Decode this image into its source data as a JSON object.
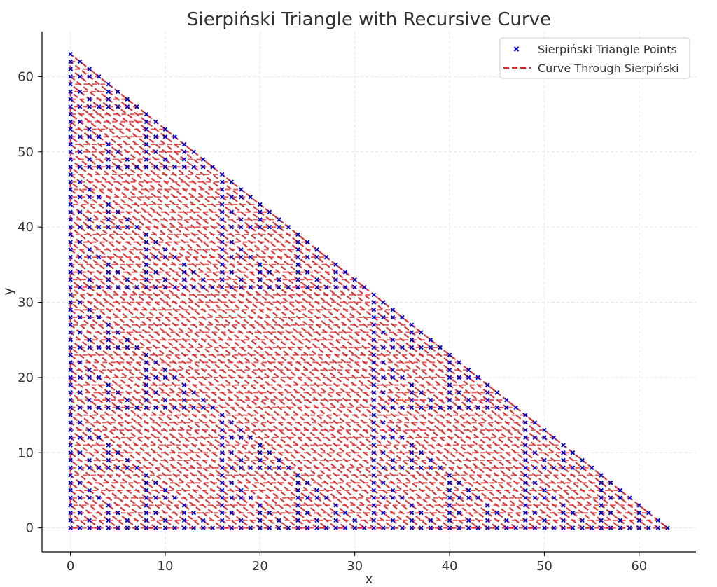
{
  "chart_data": {
    "type": "scatter",
    "title": "Sierpiński Triangle with Recursive Curve",
    "xlabel": "x",
    "ylabel": "y",
    "xlim": [
      -3,
      66
    ],
    "ylim": [
      -3.2,
      66
    ],
    "x_ticks": [
      "0",
      "10",
      "20",
      "30",
      "40",
      "50",
      "60"
    ],
    "y_ticks": [
      "0",
      "10",
      "20",
      "30",
      "40",
      "50",
      "60"
    ],
    "grid": true,
    "legend": {
      "placement": "top-right",
      "entries": [
        {
          "label": "Sierpiński Triangle Points",
          "marker": "x",
          "color": "#0000cc"
        },
        {
          "label": "Curve Through Sierpiński",
          "style": "dashed",
          "color": "#d62728"
        }
      ]
    },
    "series": [
      {
        "name": "Sierpiński Triangle Points",
        "kind": "scatter",
        "color": "#0000cc",
        "rule": "points (x, y) with x + y <= 63 and (x AND y) == 0, x,y in 0..63"
      },
      {
        "name": "Curve Through Sierpiński",
        "kind": "line",
        "color": "#d62728",
        "style": "dashed"
      }
    ]
  }
}
